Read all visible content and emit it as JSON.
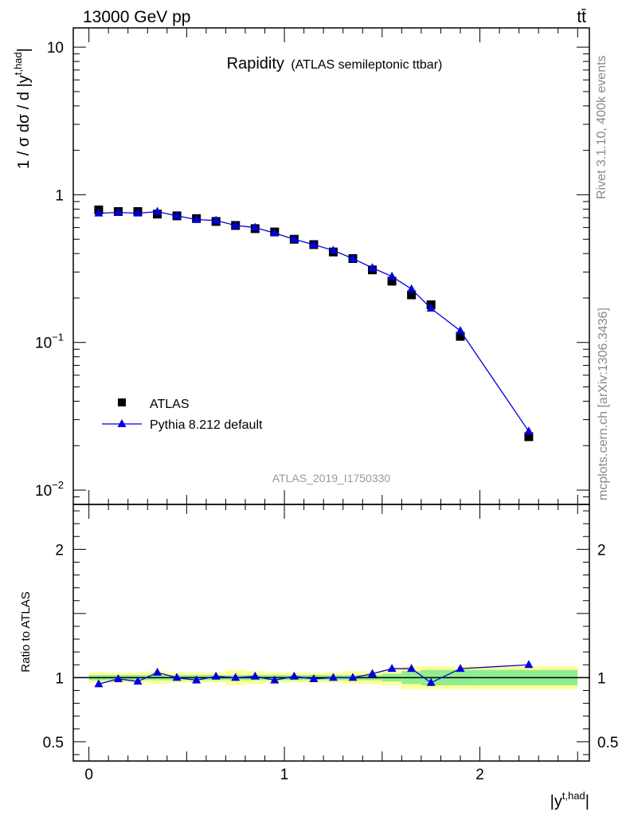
{
  "header": {
    "left": "13000 GeV pp",
    "right": "tt̄"
  },
  "side_labels": {
    "rivet": "Rivet 3.1.10,  400k events",
    "mcplots": "mcplots.cern.ch [arXiv:1306.3436]"
  },
  "chart_data": [
    {
      "type": "scatter",
      "panel": "main",
      "title": "Rapidity",
      "subtitle": "(ATLAS semileptonic ttbar)",
      "watermark": "ATLAS_2019_I1750330",
      "ylabel": "1 / σ dσ / d |y",
      "ylabel_sup": "t,had",
      "ylabel_end": "|",
      "yscale": "log",
      "xlim": [
        -0.08,
        2.56
      ],
      "ylim": [
        0.008,
        13.5
      ],
      "yticks": [
        {
          "value": 10,
          "label": "10"
        },
        {
          "value": 1,
          "label": "1"
        },
        {
          "value": 0.1,
          "label": "10",
          "sup": "−1"
        },
        {
          "value": 0.01,
          "label": "10",
          "sup": "−2"
        }
      ],
      "legend": {
        "placement": "lower-left",
        "entries": [
          "ATLAS",
          "Pythia 8.212 default"
        ]
      },
      "series": [
        {
          "name": "ATLAS",
          "marker": "square",
          "color": "#000000",
          "x": [
            0.05,
            0.15,
            0.25,
            0.35,
            0.45,
            0.55,
            0.65,
            0.75,
            0.85,
            0.95,
            1.05,
            1.15,
            1.25,
            1.35,
            1.45,
            1.55,
            1.65,
            1.75,
            1.9,
            2.25
          ],
          "y": [
            0.79,
            0.77,
            0.77,
            0.74,
            0.72,
            0.69,
            0.66,
            0.62,
            0.59,
            0.56,
            0.5,
            0.46,
            0.41,
            0.37,
            0.31,
            0.26,
            0.21,
            0.18,
            0.11,
            0.023
          ]
        },
        {
          "name": "Pythia 8.212 default",
          "marker": "triangle",
          "color": "#0000dd",
          "x": [
            0.05,
            0.15,
            0.25,
            0.35,
            0.45,
            0.55,
            0.65,
            0.75,
            0.85,
            0.95,
            1.05,
            1.15,
            1.25,
            1.35,
            1.45,
            1.55,
            1.65,
            1.75,
            1.9,
            2.25
          ],
          "y": [
            0.75,
            0.76,
            0.75,
            0.77,
            0.72,
            0.68,
            0.67,
            0.62,
            0.6,
            0.55,
            0.5,
            0.46,
            0.42,
            0.37,
            0.32,
            0.28,
            0.23,
            0.17,
            0.12,
            0.025
          ]
        }
      ]
    },
    {
      "type": "scatter",
      "panel": "ratio",
      "ylabel": "Ratio to ATLAS",
      "xlabel": "|y",
      "xlabel_sup": "t,had",
      "xlabel_end": "|",
      "xlim": [
        -0.08,
        2.56
      ],
      "ylim": [
        0.35,
        2.35
      ],
      "xticks": [
        {
          "value": 0,
          "label": "0"
        },
        {
          "value": 1,
          "label": "1"
        },
        {
          "value": 2,
          "label": "2"
        }
      ],
      "yticks": [
        {
          "value": 2,
          "label": "2"
        },
        {
          "value": 1,
          "label": "1"
        },
        {
          "value": 0.5,
          "label": "0.5"
        }
      ],
      "bands": {
        "edges": [
          0,
          0.1,
          0.2,
          0.3,
          0.4,
          0.5,
          0.6,
          0.7,
          0.8,
          0.9,
          1.0,
          1.1,
          1.2,
          1.3,
          1.4,
          1.5,
          1.6,
          1.7,
          1.8,
          2.0,
          2.5
        ],
        "stat_color": "#90ee90",
        "total_color": "#ffff99",
        "stat": [
          0.02,
          0.02,
          0.02,
          0.02,
          0.02,
          0.02,
          0.02,
          0.02,
          0.02,
          0.02,
          0.02,
          0.02,
          0.02,
          0.02,
          0.02,
          0.03,
          0.05,
          0.06,
          0.06,
          0.06
        ],
        "total": [
          0.04,
          0.04,
          0.04,
          0.05,
          0.04,
          0.04,
          0.04,
          0.06,
          0.05,
          0.04,
          0.04,
          0.04,
          0.04,
          0.05,
          0.05,
          0.06,
          0.09,
          0.09,
          0.09,
          0.09
        ]
      },
      "series": [
        {
          "name": "Pythia 8.212 default",
          "marker": "triangle",
          "color": "#0000dd",
          "x": [
            0.05,
            0.15,
            0.25,
            0.35,
            0.45,
            0.55,
            0.65,
            0.75,
            0.85,
            0.95,
            1.05,
            1.15,
            1.25,
            1.35,
            1.45,
            1.55,
            1.65,
            1.75,
            1.9,
            2.25
          ],
          "y": [
            0.95,
            0.99,
            0.97,
            1.04,
            1.0,
            0.98,
            1.01,
            1.0,
            1.01,
            0.98,
            1.01,
            0.99,
            1.0,
            1.0,
            1.03,
            1.07,
            1.07,
            0.96,
            1.07,
            1.1
          ],
          "err": [
            0,
            0,
            0,
            0,
            0,
            0,
            0,
            0,
            0,
            0,
            0,
            0,
            0,
            0.015,
            0.02,
            0.02,
            0.025,
            0.025,
            0.02,
            0.025
          ]
        }
      ]
    }
  ]
}
